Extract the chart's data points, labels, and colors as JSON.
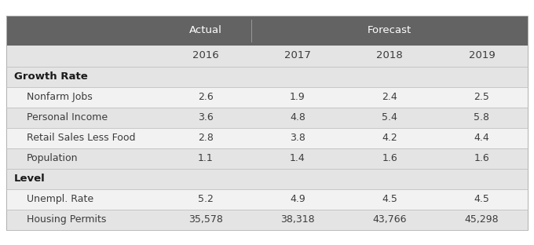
{
  "header_bg": "#636363",
  "header_text_color": "#ffffff",
  "subheader_bg": "#e4e4e4",
  "row_colors_alt": [
    "#f2f2f2",
    "#e4e4e4"
  ],
  "section_header_text": "#1a1a1a",
  "body_text_color": "#3c3c3c",
  "col_headers_bottom": [
    "2016",
    "2017",
    "2018",
    "2019"
  ],
  "sections": [
    {
      "label": "Growth Rate",
      "rows": [
        {
          "label": "Nonfarm Jobs",
          "values": [
            "2.6",
            "1.9",
            "2.4",
            "2.5"
          ]
        },
        {
          "label": "Personal Income",
          "values": [
            "3.6",
            "4.8",
            "5.4",
            "5.8"
          ]
        },
        {
          "label": "Retail Sales Less Food",
          "values": [
            "2.8",
            "3.8",
            "4.2",
            "4.4"
          ]
        },
        {
          "label": "Population",
          "values": [
            "1.1",
            "1.4",
            "1.6",
            "1.6"
          ]
        }
      ]
    },
    {
      "label": "Level",
      "rows": [
        {
          "label": "Unempl. Rate",
          "values": [
            "5.2",
            "4.9",
            "4.5",
            "4.5"
          ]
        },
        {
          "label": "Housing Permits",
          "values": [
            "35,578",
            "38,318",
            "43,766",
            "45,298"
          ]
        }
      ]
    }
  ],
  "fig_w": 6.8,
  "fig_h": 3.12,
  "dpi": 100
}
